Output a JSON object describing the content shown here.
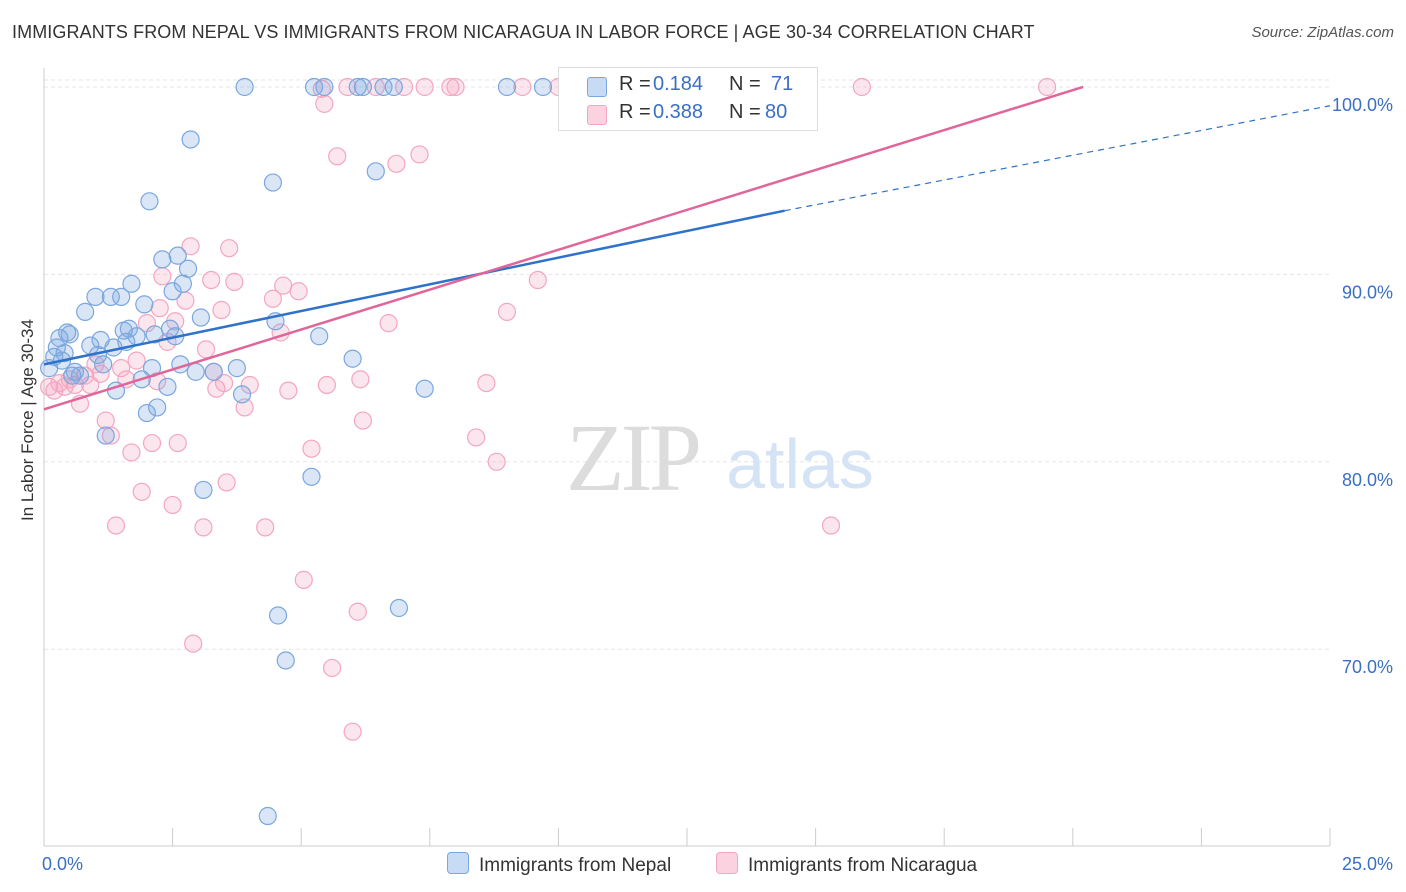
{
  "title": "IMMIGRANTS FROM NEPAL VS IMMIGRANTS FROM NICARAGUA IN LABOR FORCE | AGE 30-34 CORRELATION CHART",
  "source": "Source: ZipAtlas.com",
  "watermark": {
    "zip": "ZIP",
    "atlas": "atlas"
  },
  "legend": {
    "rows": [
      {
        "r_label": "R =",
        "r_value": "0.184",
        "n_label": "N =",
        "n_value": "71"
      },
      {
        "r_label": "R =",
        "r_value": "0.388",
        "n_label": "N =",
        "n_value": "80"
      }
    ]
  },
  "chart_data": {
    "type": "scatter",
    "title": "IMMIGRANTS FROM NEPAL VS IMMIGRANTS FROM NICARAGUA IN LABOR FORCE | AGE 30-34 CORRELATION CHART",
    "xlabel": "",
    "ylabel": "In Labor Force | Age 30-34",
    "xlim": [
      0,
      25
    ],
    "ylim": [
      59.5,
      100.8
    ],
    "x_tick_labels": [
      "0.0%",
      "25.0%"
    ],
    "y_ticks": [
      70,
      80,
      90,
      100
    ],
    "y_tick_labels": [
      "70.0%",
      "80.0%",
      "90.0%",
      "100.0%"
    ],
    "grid": true,
    "legend_position": "bottom",
    "series": [
      {
        "name": "Immigrants from Nepal",
        "color": "#7aa7e0",
        "line_color": "#2f72c9",
        "trend": {
          "x0": 0,
          "y0": 85.2,
          "x1": 14.4,
          "y1": 93.4,
          "dash_to_x": 25,
          "dash_to_y": 99.0
        },
        "points": [
          [
            0.1,
            85.0
          ],
          [
            0.2,
            85.6
          ],
          [
            0.25,
            86.1
          ],
          [
            0.3,
            86.6
          ],
          [
            0.35,
            85.4
          ],
          [
            0.4,
            85.8
          ],
          [
            0.45,
            86.9
          ],
          [
            0.5,
            86.8
          ],
          [
            0.55,
            84.6
          ],
          [
            0.6,
            84.8
          ],
          [
            0.7,
            84.6
          ],
          [
            0.8,
            88.0
          ],
          [
            0.9,
            86.2
          ],
          [
            1.0,
            88.8
          ],
          [
            1.05,
            85.7
          ],
          [
            1.1,
            86.5
          ],
          [
            1.15,
            85.2
          ],
          [
            1.2,
            81.4
          ],
          [
            1.3,
            88.8
          ],
          [
            1.35,
            86.1
          ],
          [
            1.4,
            83.8
          ],
          [
            1.5,
            88.8
          ],
          [
            1.55,
            87.0
          ],
          [
            1.6,
            86.4
          ],
          [
            1.65,
            87.1
          ],
          [
            1.7,
            89.5
          ],
          [
            1.8,
            86.7
          ],
          [
            1.9,
            84.4
          ],
          [
            1.95,
            88.4
          ],
          [
            2.0,
            82.6
          ],
          [
            2.05,
            93.9
          ],
          [
            2.1,
            85.0
          ],
          [
            2.15,
            86.8
          ],
          [
            2.2,
            82.9
          ],
          [
            2.3,
            90.8
          ],
          [
            2.4,
            84.0
          ],
          [
            2.45,
            87.1
          ],
          [
            2.5,
            89.1
          ],
          [
            2.55,
            86.7
          ],
          [
            2.6,
            91.0
          ],
          [
            2.65,
            85.2
          ],
          [
            2.7,
            89.5
          ],
          [
            2.8,
            90.3
          ],
          [
            2.85,
            97.2
          ],
          [
            2.95,
            84.8
          ],
          [
            3.05,
            87.7
          ],
          [
            3.1,
            78.5
          ],
          [
            3.3,
            84.8
          ],
          [
            3.75,
            85.0
          ],
          [
            3.85,
            83.6
          ],
          [
            3.9,
            100.0
          ],
          [
            4.35,
            61.1
          ],
          [
            4.45,
            94.9
          ],
          [
            4.5,
            87.5
          ],
          [
            4.55,
            71.8
          ],
          [
            4.7,
            69.4
          ],
          [
            5.2,
            79.2
          ],
          [
            5.25,
            100.0
          ],
          [
            5.35,
            86.7
          ],
          [
            5.45,
            100.0
          ],
          [
            6.0,
            85.5
          ],
          [
            6.1,
            100.0
          ],
          [
            6.2,
            100.0
          ],
          [
            6.45,
            95.5
          ],
          [
            6.6,
            100.0
          ],
          [
            6.8,
            100.0
          ],
          [
            6.9,
            72.2
          ],
          [
            7.4,
            83.9
          ],
          [
            9.0,
            100.0
          ],
          [
            9.7,
            100.0
          ],
          [
            10.3,
            100.0
          ]
        ]
      },
      {
        "name": "Immigrants from Nicaragua",
        "color": "#f4a6c0",
        "line_color": "#e0669a",
        "trend": {
          "x0": 0,
          "y0": 82.8,
          "x1": 20.2,
          "y1": 100.0
        },
        "points": [
          [
            0.1,
            84.0
          ],
          [
            0.2,
            83.8
          ],
          [
            0.3,
            84.2
          ],
          [
            0.4,
            84.0
          ],
          [
            0.5,
            84.4
          ],
          [
            0.6,
            84.1
          ],
          [
            0.7,
            83.1
          ],
          [
            0.8,
            84.6
          ],
          [
            0.9,
            84.1
          ],
          [
            1.0,
            85.2
          ],
          [
            1.1,
            84.7
          ],
          [
            1.2,
            82.2
          ],
          [
            1.3,
            81.4
          ],
          [
            1.4,
            76.6
          ],
          [
            1.5,
            85.0
          ],
          [
            1.6,
            84.4
          ],
          [
            1.7,
            80.5
          ],
          [
            1.8,
            85.4
          ],
          [
            1.9,
            78.4
          ],
          [
            2.0,
            87.4
          ],
          [
            2.1,
            81.0
          ],
          [
            2.2,
            84.3
          ],
          [
            2.25,
            88.2
          ],
          [
            2.3,
            89.9
          ],
          [
            2.4,
            86.4
          ],
          [
            2.5,
            77.7
          ],
          [
            2.55,
            87.5
          ],
          [
            2.6,
            81.0
          ],
          [
            2.75,
            88.6
          ],
          [
            2.85,
            91.5
          ],
          [
            2.9,
            70.3
          ],
          [
            3.1,
            76.5
          ],
          [
            3.15,
            86.0
          ],
          [
            3.25,
            89.7
          ],
          [
            3.3,
            84.8
          ],
          [
            3.35,
            83.9
          ],
          [
            3.45,
            88.1
          ],
          [
            3.5,
            84.2
          ],
          [
            3.55,
            78.9
          ],
          [
            3.6,
            91.4
          ],
          [
            3.7,
            89.6
          ],
          [
            3.9,
            82.9
          ],
          [
            4.0,
            84.1
          ],
          [
            4.3,
            76.5
          ],
          [
            4.45,
            88.7
          ],
          [
            4.6,
            86.9
          ],
          [
            4.65,
            89.4
          ],
          [
            4.75,
            83.8
          ],
          [
            4.95,
            89.1
          ],
          [
            5.05,
            73.7
          ],
          [
            5.2,
            80.7
          ],
          [
            5.4,
            99.9
          ],
          [
            5.45,
            99.1
          ],
          [
            5.5,
            84.1
          ],
          [
            5.6,
            69.0
          ],
          [
            5.7,
            96.3
          ],
          [
            5.9,
            100.0
          ],
          [
            6.0,
            65.6
          ],
          [
            6.1,
            72.0
          ],
          [
            6.15,
            84.4
          ],
          [
            6.2,
            82.2
          ],
          [
            6.45,
            100.0
          ],
          [
            6.7,
            87.4
          ],
          [
            6.85,
            95.9
          ],
          [
            7.0,
            100.0
          ],
          [
            7.3,
            96.4
          ],
          [
            7.4,
            100.0
          ],
          [
            7.9,
            100.0
          ],
          [
            8.0,
            100.0
          ],
          [
            8.4,
            81.3
          ],
          [
            8.6,
            84.2
          ],
          [
            8.8,
            80.0
          ],
          [
            9.0,
            88.0
          ],
          [
            9.3,
            100.0
          ],
          [
            9.6,
            89.7
          ],
          [
            10.0,
            100.0
          ],
          [
            10.7,
            98.6
          ],
          [
            15.3,
            76.6
          ],
          [
            15.9,
            100.0
          ],
          [
            19.5,
            100.0
          ]
        ]
      }
    ]
  }
}
